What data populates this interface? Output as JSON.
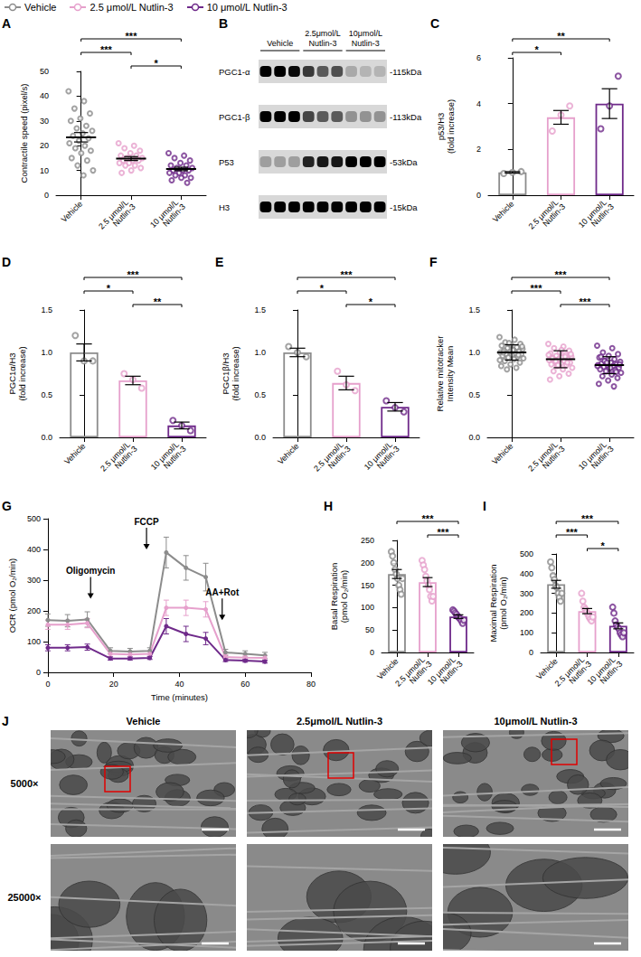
{
  "chart_data": [
    {
      "type": "scatter",
      "panel": "A",
      "ylabel": "Contractile speed (pixel/s)",
      "categories": [
        "Vehicle",
        "2.5 μmol/L Nutlin-3",
        "10 μmol/L Nutlin-3"
      ],
      "colors": [
        "#8c8c8c",
        "#e6a0cc",
        "#6f2a8a"
      ],
      "values": [
        23.4,
        14.8,
        10.6
      ],
      "errors": [
        1.9,
        0.8,
        0.7
      ],
      "points": [
        [
          42,
          38,
          35,
          33,
          31,
          30,
          28,
          27,
          26,
          25,
          24,
          23,
          22,
          21,
          20,
          19,
          18,
          17,
          15,
          14,
          12,
          10,
          8
        ],
        [
          21,
          20,
          19,
          18,
          17,
          16,
          16,
          15,
          15,
          14,
          14,
          14,
          13,
          13,
          12,
          12,
          11,
          10,
          9
        ],
        [
          17,
          16,
          15,
          14,
          13,
          12,
          12,
          11,
          11,
          10,
          10,
          10,
          9,
          9,
          8,
          8,
          7,
          7,
          6,
          5
        ]
      ],
      "brackets": [
        {
          "between": [
            0,
            2
          ],
          "label": "***"
        },
        {
          "between": [
            0,
            1
          ],
          "label": "***"
        },
        {
          "between": [
            1,
            2
          ],
          "label": "*"
        }
      ],
      "ylim": [
        0,
        50
      ],
      "yticks": [
        0,
        10,
        20,
        30,
        40,
        50
      ],
      "grid": false
    },
    {
      "type": "bar",
      "panel": "C",
      "ylabel": "p53/H3\n(fold increase)",
      "categories": [
        "Vehicle",
        "2.5 μmol/L Nutlin-3",
        "10 μmol/L Nutlin-3"
      ],
      "colors": [
        "#8c8c8c",
        "#e6a0cc",
        "#6f2a8a"
      ],
      "values": [
        1.0,
        3.4,
        4.0
      ],
      "errors": [
        0.03,
        0.3,
        0.65
      ],
      "points": [
        [
          0.95,
          1.0,
          1.03
        ],
        [
          2.8,
          3.5,
          3.9
        ],
        [
          2.9,
          3.9,
          5.2
        ]
      ],
      "brackets": [
        {
          "between": [
            0,
            2
          ],
          "label": "**"
        },
        {
          "between": [
            0,
            1
          ],
          "label": "*"
        }
      ],
      "ylim": [
        0,
        6
      ],
      "yticks": [
        0,
        2,
        4,
        6
      ],
      "grid": false
    },
    {
      "type": "bar",
      "panel": "D",
      "ylabel": "PGC1α/H3\n(fold increase)",
      "categories": [
        "Vehicle",
        "2.5 μmol/L Nutlin-3",
        "10 μmol/L Nutlin-3"
      ],
      "colors": [
        "#8c8c8c",
        "#e6a0cc",
        "#6f2a8a"
      ],
      "values": [
        1.0,
        0.67,
        0.14
      ],
      "errors": [
        0.1,
        0.05,
        0.04
      ],
      "points": [
        [
          1.2,
          0.9,
          0.9
        ],
        [
          0.75,
          0.68,
          0.58
        ],
        [
          0.2,
          0.14,
          0.08
        ]
      ],
      "brackets": [
        {
          "between": [
            0,
            2
          ],
          "label": "***"
        },
        {
          "between": [
            0,
            1
          ],
          "label": "*"
        },
        {
          "between": [
            1,
            2
          ],
          "label": "**"
        }
      ],
      "ylim": [
        0,
        1.5
      ],
      "yticks": [
        {
          "value": 0,
          "label": "0.0"
        },
        {
          "value": 0.5,
          "label": "0.5"
        },
        {
          "value": 1,
          "label": "1.0"
        },
        {
          "value": 1.5,
          "label": "1.5"
        }
      ],
      "grid": false
    },
    {
      "type": "bar",
      "panel": "E",
      "ylabel": "PGC1β/H3\n(fold increase)",
      "categories": [
        "Vehicle",
        "2.5 μmol/L Nutlin-3",
        "10 μmol/L Nutlin-3"
      ],
      "colors": [
        "#8c8c8c",
        "#e6a0cc",
        "#6f2a8a"
      ],
      "values": [
        1.0,
        0.64,
        0.36
      ],
      "errors": [
        0.05,
        0.08,
        0.05
      ],
      "points": [
        [
          1.07,
          1.0,
          0.95
        ],
        [
          0.78,
          0.62,
          0.55
        ],
        [
          0.43,
          0.35,
          0.3
        ]
      ],
      "brackets": [
        {
          "between": [
            0,
            2
          ],
          "label": "***"
        },
        {
          "between": [
            0,
            1
          ],
          "label": "*"
        },
        {
          "between": [
            1,
            2
          ],
          "label": "*"
        }
      ],
      "ylim": [
        0,
        1.5
      ],
      "yticks": [
        {
          "value": 0,
          "label": "0.0"
        },
        {
          "value": 0.5,
          "label": "0.5"
        },
        {
          "value": 1,
          "label": "1.0"
        },
        {
          "value": 1.5,
          "label": "1.5"
        }
      ],
      "grid": false
    },
    {
      "type": "scatter",
      "panel": "F",
      "ylabel": "Relative mitotracker\nIntensity Mean",
      "categories": [
        "Vehicle",
        "2.5 μmol/L Nutlin-3",
        "10 μmol/L Nutlin-3"
      ],
      "colors": [
        "#8c8c8c",
        "#e6a0cc",
        "#6f2a8a"
      ],
      "values": [
        1.0,
        0.92,
        0.85
      ],
      "errors": [
        0.09,
        0.1,
        0.1
      ],
      "points": [
        [
          1.18,
          1.15,
          1.12,
          1.1,
          1.09,
          1.08,
          1.06,
          1.05,
          1.04,
          1.03,
          1.02,
          1.01,
          1.0,
          1.0,
          0.99,
          0.98,
          0.98,
          0.97,
          0.96,
          0.95,
          0.94,
          0.93,
          0.92,
          0.9,
          0.88,
          0.86,
          0.84,
          0.82,
          0.8,
          1.07,
          1.03,
          1.0,
          0.97,
          1.11,
          0.91
        ],
        [
          1.1,
          1.07,
          1.05,
          1.02,
          1.0,
          0.99,
          0.97,
          0.96,
          0.95,
          0.94,
          0.93,
          0.92,
          0.92,
          0.91,
          0.9,
          0.89,
          0.88,
          0.87,
          0.86,
          0.85,
          0.84,
          0.82,
          0.8,
          0.78,
          0.75,
          0.72,
          0.68,
          0.95,
          0.9,
          0.98,
          1.03,
          0.93,
          0.88,
          0.85,
          0.97
        ],
        [
          1.08,
          1.05,
          1.0,
          0.98,
          0.96,
          0.94,
          0.92,
          0.9,
          0.89,
          0.88,
          0.87,
          0.86,
          0.85,
          0.85,
          0.84,
          0.83,
          0.82,
          0.81,
          0.8,
          0.79,
          0.78,
          0.76,
          0.74,
          0.72,
          0.7,
          0.67,
          0.63,
          0.6,
          0.9,
          0.86,
          0.82,
          0.95,
          0.77,
          0.88,
          0.84
        ]
      ],
      "brackets": [
        {
          "between": [
            0,
            2
          ],
          "label": "***"
        },
        {
          "between": [
            0,
            1
          ],
          "label": "***"
        },
        {
          "between": [
            1,
            2
          ],
          "label": "***"
        }
      ],
      "ylim": [
        0,
        1.5
      ],
      "yticks": [
        {
          "value": 0,
          "label": "0.0"
        },
        {
          "value": 0.5,
          "label": "0.5"
        },
        {
          "value": 1,
          "label": "1.0"
        },
        {
          "value": 1.5,
          "label": "1.5"
        }
      ],
      "grid": false
    },
    {
      "type": "line",
      "panel": "G",
      "xlabel": "Time (minutes)",
      "ylabel": "OCR (pmol O₂/min)",
      "legend": "top",
      "x": [
        0,
        6,
        12,
        19,
        25,
        31,
        36,
        42,
        48,
        54,
        60,
        66
      ],
      "series": [
        {
          "name": "Vehicle",
          "color": "#8c8c8c",
          "values": [
            170,
            168,
            172,
            70,
            68,
            70,
            390,
            340,
            310,
            65,
            60,
            55
          ],
          "errors": [
            20,
            20,
            25,
            10,
            10,
            10,
            50,
            40,
            45,
            10,
            10,
            10
          ]
        },
        {
          "name": "2.5 μmol/L Nutlin-3",
          "color": "#e6a0cc",
          "values": [
            155,
            155,
            160,
            60,
            58,
            60,
            210,
            210,
            205,
            50,
            48,
            47
          ],
          "errors": [
            15,
            15,
            15,
            8,
            8,
            8,
            25,
            25,
            25,
            8,
            8,
            8
          ]
        },
        {
          "name": "10 μmol/L Nutlin-3",
          "color": "#6f2a8a",
          "values": [
            80,
            80,
            82,
            45,
            45,
            47,
            150,
            125,
            110,
            40,
            38,
            35
          ],
          "errors": [
            10,
            10,
            10,
            5,
            5,
            5,
            25,
            25,
            20,
            5,
            5,
            5
          ]
        }
      ],
      "annotations": [
        {
          "text": "Oligomycin",
          "x": 13,
          "y": 240
        },
        {
          "text": "FCCP",
          "x": 30,
          "y": 400
        },
        {
          "text": "AA+Rot",
          "x": 53,
          "y": 170
        }
      ],
      "xlim": [
        0,
        80
      ],
      "xticks": [
        0,
        20,
        40,
        60,
        80
      ],
      "ylim": [
        0,
        500
      ],
      "yticks": [
        0,
        100,
        200,
        300,
        400,
        500
      ],
      "grid": false
    },
    {
      "type": "bar",
      "panel": "H",
      "ylabel": "Basal Respiration\n(pmol O₂/min)",
      "categories": [
        "Vehicle",
        "2.5 μmol/L Nutlin-3",
        "10 μmol/L Nutlin-3"
      ],
      "colors": [
        "#8c8c8c",
        "#e6a0cc",
        "#6f2a8a"
      ],
      "values": [
        175,
        157,
        80
      ],
      "errors": [
        10,
        10,
        4
      ],
      "points": [
        [
          225,
          215,
          200,
          185,
          175,
          165,
          150,
          140,
          130,
          165
        ],
        [
          205,
          195,
          185,
          170,
          160,
          150,
          140,
          125,
          115,
          125
        ],
        [
          95,
          92,
          88,
          85,
          80,
          78,
          75,
          70,
          65,
          72
        ]
      ],
      "brackets": [
        {
          "between": [
            0,
            2
          ],
          "label": "***"
        },
        {
          "between": [
            1,
            2
          ],
          "label": "***"
        }
      ],
      "ylim": [
        0,
        250
      ],
      "yticks": [
        0,
        50,
        100,
        150,
        200,
        250
      ],
      "grid": false
    },
    {
      "type": "bar",
      "panel": "I",
      "ylabel": "Maximal Respiration\n(pmol O₂/min)",
      "categories": [
        "Vehicle",
        "2.5 μmol/L Nutlin-3",
        "10 μmol/L Nutlin-3"
      ],
      "colors": [
        "#8c8c8c",
        "#e6a0cc",
        "#6f2a8a"
      ],
      "values": [
        346,
        210,
        135
      ],
      "errors": [
        20,
        13,
        15
      ],
      "points": [
        [
          460,
          430,
          390,
          370,
          340,
          330,
          300,
          280,
          260,
          300
        ],
        [
          300,
          260,
          230,
          220,
          205,
          195,
          180,
          170,
          160,
          180
        ],
        [
          230,
          200,
          160,
          140,
          130,
          120,
          100,
          90,
          80,
          100
        ]
      ],
      "brackets": [
        {
          "between": [
            0,
            2
          ],
          "label": "***"
        },
        {
          "between": [
            0,
            1
          ],
          "label": "***"
        },
        {
          "between": [
            1,
            2
          ],
          "label": "*"
        }
      ],
      "ylim": [
        0,
        500
      ],
      "yticks": [
        0,
        100,
        200,
        300,
        400,
        500
      ],
      "grid": false
    }
  ],
  "blot": {
    "panel": "B",
    "groups": [
      {
        "label": "Vehicle",
        "lanes": 3
      },
      {
        "label": "2.5μmol/L Nutlin-3",
        "lanes": 3
      },
      {
        "label": "10μmol/L Nutlin-3",
        "lanes": 3
      }
    ],
    "rows": [
      {
        "protein": "PGC1-α",
        "size": "-115kDa",
        "intensity": [
          1,
          1,
          0.95,
          0.75,
          0.6,
          0.65,
          0.25,
          0.2,
          0.2
        ]
      },
      {
        "protein": "PGC1-β",
        "size": "-113kDa",
        "intensity": [
          1,
          1,
          1,
          0.7,
          0.6,
          0.6,
          0.35,
          0.35,
          0.35
        ]
      },
      {
        "protein": "P53",
        "size": "-53kDa",
        "intensity": [
          0.3,
          0.3,
          0.3,
          0.85,
          0.9,
          0.9,
          1,
          1,
          1
        ]
      },
      {
        "protein": "H3",
        "size": "-15kDa",
        "intensity": [
          1,
          1,
          1,
          1,
          1,
          1,
          1,
          1,
          1
        ]
      }
    ]
  },
  "em": {
    "panel": "J",
    "columns": [
      "Vehicle",
      "2.5μmol/L Nutlin-3",
      "10μmol/L Nutlin-3"
    ],
    "rows": [
      "5000×",
      "25000×"
    ]
  }
}
